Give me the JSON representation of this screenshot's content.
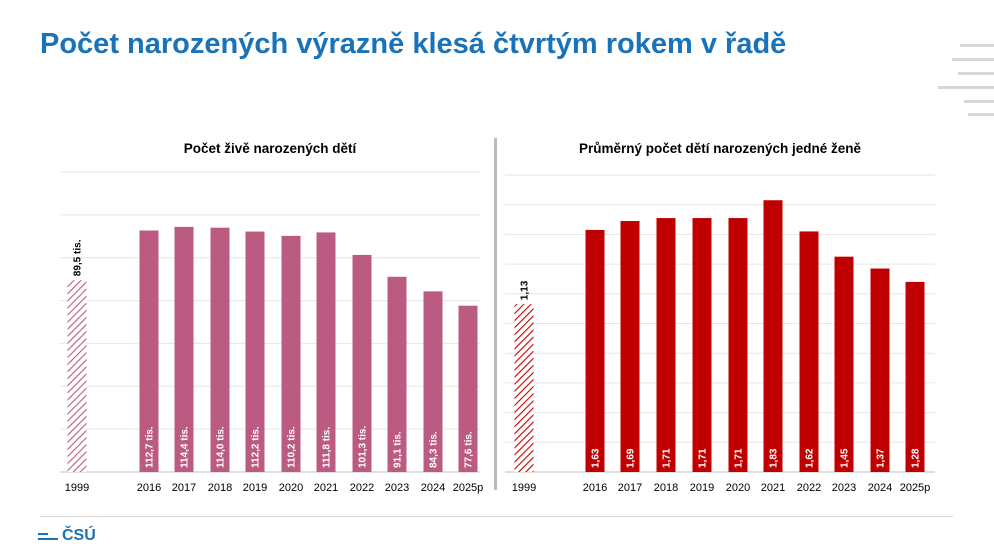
{
  "header": {
    "title": "Počet narozených výrazně klesá čtvrtým rokem v řadě"
  },
  "logo": {
    "text": "ČSÚ"
  },
  "colors": {
    "title": "#1a73b8",
    "left_bars": "#bb5b82",
    "right_bars": "#c00000",
    "divider": "#b9b9b9"
  },
  "chart_data": [
    {
      "type": "bar",
      "title": "Počet živě narozených dětí",
      "categories": [
        "1999",
        "2016",
        "2017",
        "2018",
        "2019",
        "2020",
        "2021",
        "2022",
        "2023",
        "2024",
        "2025p"
      ],
      "values": [
        89.5,
        112.7,
        114.4,
        114.0,
        112.2,
        110.2,
        111.8,
        101.3,
        91.1,
        84.3,
        77.6
      ],
      "labels": [
        "89,5 tis.",
        "112,7 tis.",
        "114,4 tis.",
        "114,0 tis.",
        "112,2 tis.",
        "110,2 tis.",
        "111,8 tis.",
        "101,3 tis.",
        "91,1 tis.",
        "84,3 tis.",
        "77,6 tis."
      ],
      "hatched": [
        "1999"
      ],
      "ylim": [
        0,
        140
      ],
      "grid": true,
      "xlabel": "",
      "ylabel": ""
    },
    {
      "type": "bar",
      "title": "Průměrný počet dětí narozených jedné ženě",
      "categories": [
        "1999",
        "2016",
        "2017",
        "2018",
        "2019",
        "2020",
        "2021",
        "2022",
        "2023",
        "2024",
        "2025p"
      ],
      "values": [
        1.13,
        1.63,
        1.69,
        1.71,
        1.71,
        1.71,
        1.83,
        1.62,
        1.45,
        1.37,
        1.28
      ],
      "labels": [
        "1,13",
        "1,63",
        "1,69",
        "1,71",
        "1,71",
        "1,71",
        "1,83",
        "1,62",
        "1,45",
        "1,37",
        "1,28"
      ],
      "hatched": [
        "1999"
      ],
      "ylim": [
        0,
        2.0
      ],
      "grid": true,
      "xlabel": "",
      "ylabel": ""
    }
  ]
}
